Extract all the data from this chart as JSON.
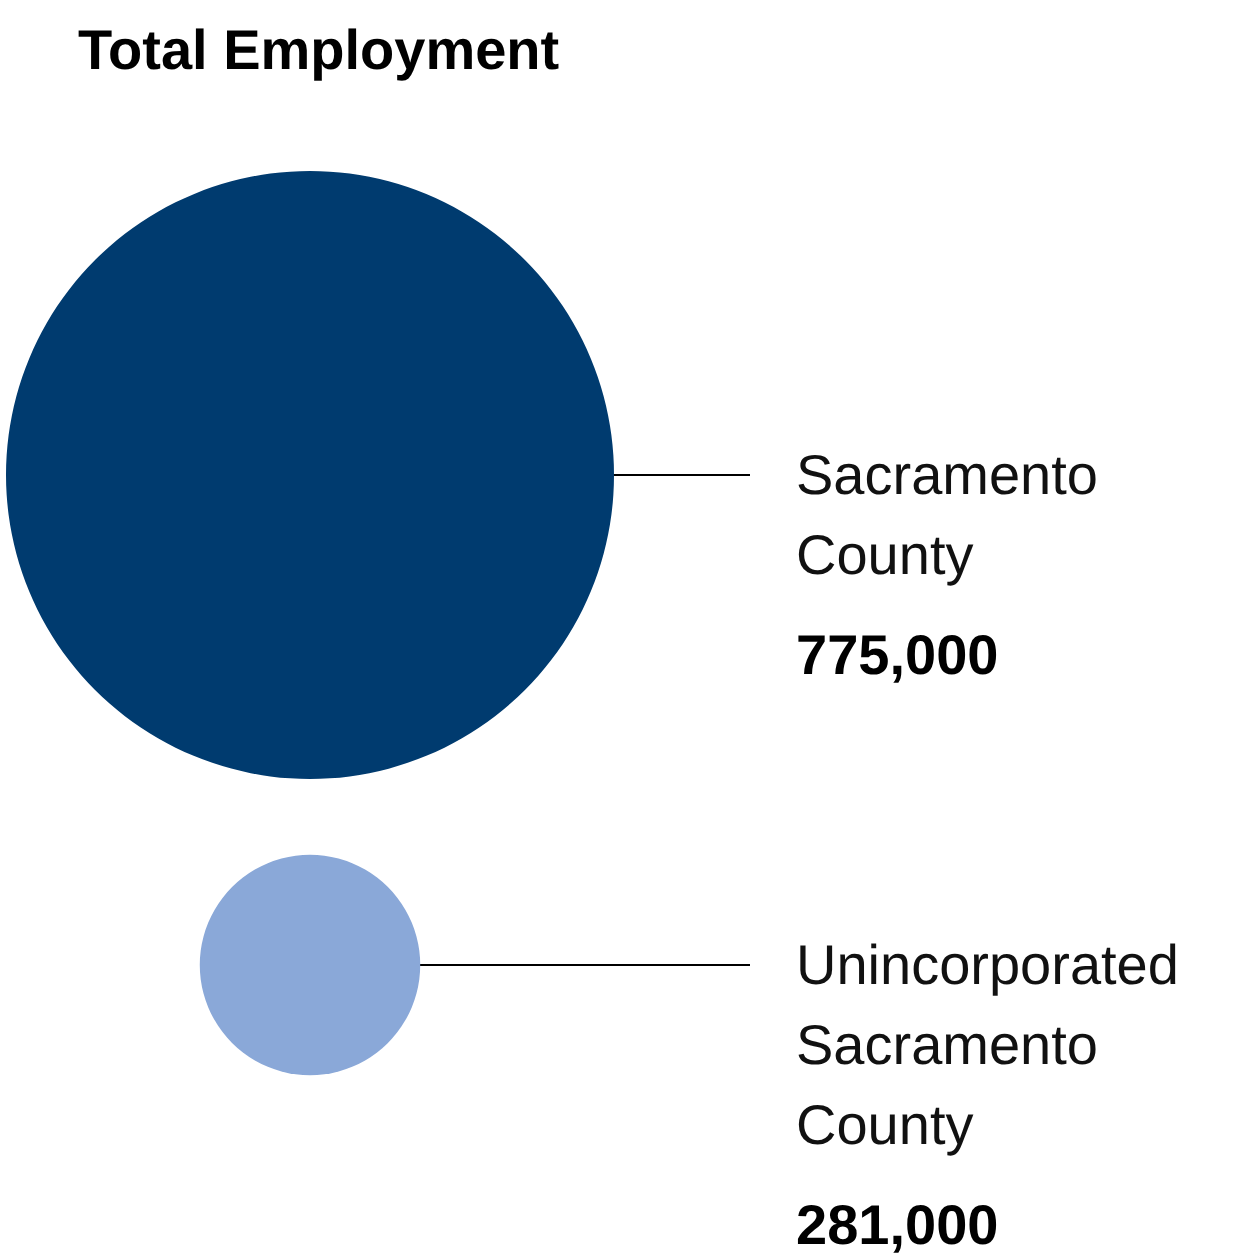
{
  "chart_data": {
    "type": "other",
    "title": "Total Employment",
    "categories": [
      "Sacramento County",
      "Unincorporated Sacramento County"
    ],
    "values": [
      775000,
      281000
    ],
    "value_labels": [
      "775,000",
      "281,000"
    ],
    "colors": [
      "#003b6f",
      "#8aa8d8"
    ]
  }
}
